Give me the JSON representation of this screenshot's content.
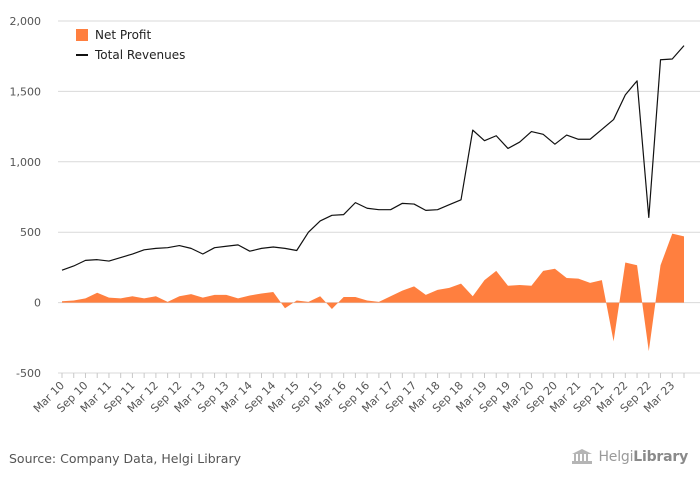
{
  "chart_data": {
    "type": "area",
    "ylim": [
      -500,
      2000
    ],
    "y_ticks": [
      -500,
      0,
      500,
      1000,
      1500,
      2000
    ],
    "y_tick_labels": [
      "-500",
      "0",
      "500",
      "1,000",
      "1,500",
      "2,000"
    ],
    "grid": true,
    "legend_position": "top-left",
    "x": [
      "Mar 10",
      "Jun 10",
      "Sep 10",
      "Dec 10",
      "Mar 11",
      "Jun 11",
      "Sep 11",
      "Dec 11",
      "Mar 12",
      "Jun 12",
      "Sep 12",
      "Dec 12",
      "Mar 13",
      "Jun 13",
      "Sep 13",
      "Dec 13",
      "Mar 14",
      "Jun 14",
      "Sep 14",
      "Dec 14",
      "Mar 15",
      "Jun 15",
      "Sep 15",
      "Dec 15",
      "Mar 16",
      "Jun 16",
      "Sep 16",
      "Dec 16",
      "Mar 17",
      "Jun 17",
      "Sep 17",
      "Dec 17",
      "Mar 18",
      "Jun 18",
      "Sep 18",
      "Dec 18",
      "Mar 19",
      "Jun 19",
      "Sep 19",
      "Dec 19",
      "Mar 20",
      "Jun 20",
      "Sep 20",
      "Dec 20",
      "Mar 21",
      "Jun 21",
      "Sep 21",
      "Dec 21",
      "Mar 22",
      "Jun 22",
      "Sep 22",
      "Dec 22",
      "Mar 23",
      "Jun 23"
    ],
    "x_tick_labels": [
      "Mar 10",
      "Sep 10",
      "Mar 11",
      "Sep 11",
      "Mar 12",
      "Sep 12",
      "Mar 13",
      "Sep 13",
      "Mar 14",
      "Sep 14",
      "Mar 15",
      "Sep 15",
      "Mar 16",
      "Sep 16",
      "Mar 17",
      "Sep 17",
      "Mar 18",
      "Sep 18",
      "Mar 19",
      "Sep 19",
      "Mar 20",
      "Sep 20",
      "Mar 21",
      "Sep 21",
      "Mar 22",
      "Sep 22",
      "Mar 23"
    ],
    "series": [
      {
        "name": "Net Profit",
        "type": "area",
        "color": "#ff7f3f",
        "values": [
          10,
          15,
          30,
          70,
          35,
          30,
          45,
          30,
          45,
          5,
          45,
          60,
          35,
          55,
          55,
          30,
          50,
          65,
          75,
          -40,
          15,
          5,
          45,
          -45,
          40,
          40,
          15,
          5,
          45,
          85,
          115,
          55,
          90,
          105,
          135,
          45,
          160,
          225,
          120,
          125,
          120,
          225,
          240,
          175,
          170,
          140,
          160,
          -275,
          285,
          265,
          -345,
          265,
          490,
          470
        ]
      },
      {
        "name": "Total Revenues",
        "type": "line",
        "color": "#111111",
        "values": [
          230,
          260,
          300,
          305,
          295,
          320,
          345,
          375,
          385,
          390,
          405,
          385,
          345,
          390,
          400,
          410,
          365,
          385,
          395,
          385,
          370,
          500,
          580,
          620,
          625,
          710,
          670,
          660,
          660,
          705,
          700,
          655,
          660,
          695,
          730,
          1225,
          1150,
          1185,
          1095,
          1140,
          1215,
          1195,
          1125,
          1190,
          1160,
          1160,
          1230,
          1300,
          1475,
          1575,
          605,
          1725,
          1730,
          1825
        ]
      }
    ]
  },
  "legend": [
    {
      "label": "Net Profit",
      "color": "#ff7f3f"
    },
    {
      "label": "Total Revenues",
      "color": "#111111"
    }
  ],
  "footer": {
    "source": "Source: Company Data, Helgi Library",
    "brand_light": "Helgi",
    "brand_bold": "Library"
  }
}
